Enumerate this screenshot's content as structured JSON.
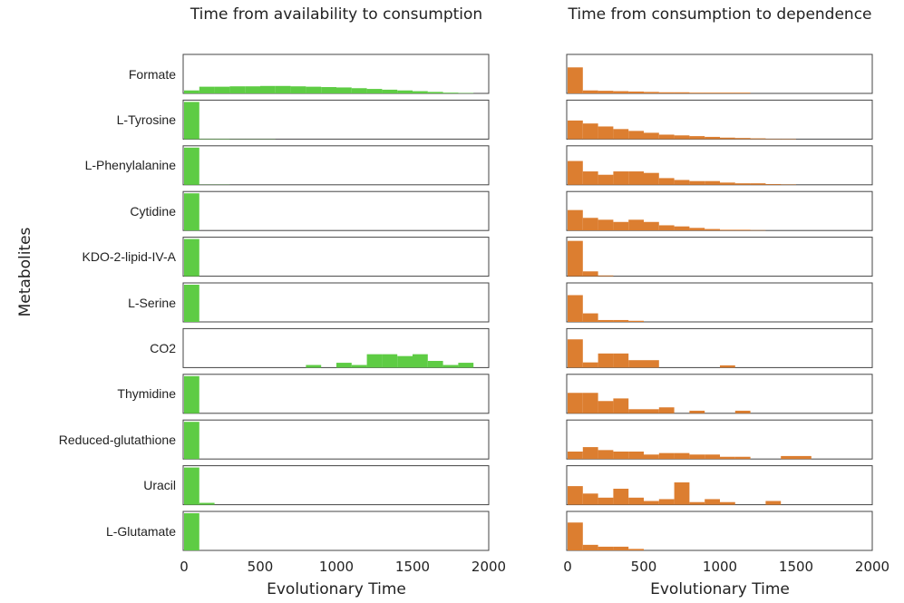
{
  "column_titles": [
    "Time from availability to consumption",
    "Time from consumption to dependence"
  ],
  "ylabel": "Metabolites",
  "xlabel": "Evolutionary Time",
  "x_ticks": [
    "0",
    "500",
    "1000",
    "1500",
    "2000"
  ],
  "colors": {
    "left": "#5ecc44",
    "right": "#dc7e30"
  },
  "chart_data": [
    {
      "type": "bar",
      "title": "Time from availability to consumption",
      "xlabel": "Evolutionary Time",
      "ylabel": "Metabolites",
      "xlim": [
        0,
        2000
      ],
      "bin_width": 100,
      "bin_edges_start": [
        0,
        100,
        200,
        300,
        400,
        500,
        600,
        700,
        800,
        900,
        1000,
        1100,
        1200,
        1300,
        1400,
        1500,
        1600,
        1700,
        1800,
        1900
      ],
      "series": [
        {
          "name": "Formate",
          "values": [
            0.08,
            0.18,
            0.18,
            0.19,
            0.19,
            0.2,
            0.2,
            0.19,
            0.18,
            0.17,
            0.16,
            0.14,
            0.12,
            0.1,
            0.08,
            0.06,
            0.04,
            0.02,
            0.01,
            0
          ]
        },
        {
          "name": "L-Tyrosine",
          "values": [
            1,
            0.01,
            0.01,
            0.005,
            0.005,
            0.005,
            0,
            0,
            0,
            0,
            0,
            0,
            0,
            0,
            0,
            0,
            0,
            0,
            0,
            0
          ]
        },
        {
          "name": "L-Phenylalanine",
          "values": [
            1,
            0.005,
            0.005,
            0,
            0,
            0,
            0,
            0,
            0,
            0,
            0,
            0,
            0,
            0,
            0,
            0,
            0,
            0,
            0,
            0
          ]
        },
        {
          "name": "Cytidine",
          "values": [
            1,
            0,
            0,
            0,
            0,
            0,
            0,
            0,
            0,
            0,
            0,
            0,
            0,
            0,
            0,
            0,
            0,
            0,
            0,
            0
          ]
        },
        {
          "name": "KDO-2-lipid-IV-A",
          "values": [
            1,
            0,
            0,
            0,
            0,
            0,
            0,
            0,
            0,
            0,
            0,
            0,
            0,
            0,
            0,
            0,
            0,
            0,
            0,
            0
          ]
        },
        {
          "name": "L-Serine",
          "values": [
            1,
            0,
            0,
            0,
            0,
            0,
            0,
            0,
            0,
            0,
            0,
            0,
            0,
            0,
            0,
            0,
            0,
            0,
            0,
            0
          ]
        },
        {
          "name": "CO2",
          "values": [
            0,
            0,
            0,
            0,
            0,
            0,
            0,
            0,
            0.07,
            0,
            0.13,
            0.07,
            0.36,
            0.36,
            0.31,
            0.36,
            0.18,
            0.07,
            0.13,
            0
          ]
        },
        {
          "name": "Thymidine",
          "values": [
            1,
            0,
            0,
            0,
            0,
            0,
            0,
            0,
            0,
            0,
            0,
            0,
            0,
            0,
            0,
            0,
            0,
            0,
            0,
            0
          ]
        },
        {
          "name": "Reduced-glutathione",
          "values": [
            1,
            0,
            0,
            0,
            0,
            0,
            0,
            0,
            0,
            0,
            0,
            0,
            0,
            0,
            0,
            0,
            0,
            0,
            0,
            0
          ]
        },
        {
          "name": "Uracil",
          "values": [
            1,
            0.05,
            0,
            0,
            0,
            0,
            0,
            0,
            0,
            0,
            0,
            0,
            0,
            0,
            0,
            0,
            0,
            0,
            0,
            0
          ]
        },
        {
          "name": "L-Glutamate",
          "values": [
            1,
            0,
            0,
            0,
            0,
            0,
            0,
            0,
            0,
            0,
            0,
            0,
            0,
            0,
            0,
            0,
            0,
            0,
            0,
            0
          ]
        }
      ]
    },
    {
      "type": "bar",
      "title": "Time from consumption to dependence",
      "xlabel": "Evolutionary Time",
      "xlim": [
        0,
        2000
      ],
      "bin_width": 100,
      "bin_edges_start": [
        0,
        100,
        200,
        300,
        400,
        500,
        600,
        700,
        800,
        900,
        1000,
        1100,
        1200,
        1300,
        1400,
        1500,
        1600,
        1700,
        1800,
        1900
      ],
      "series": [
        {
          "name": "Formate",
          "values": [
            0.7,
            0.08,
            0.07,
            0.06,
            0.05,
            0.04,
            0.03,
            0.03,
            0.02,
            0.02,
            0.02,
            0.02,
            0,
            0,
            0,
            0,
            0,
            0,
            0,
            0
          ]
        },
        {
          "name": "L-Tyrosine",
          "values": [
            0.5,
            0.42,
            0.34,
            0.27,
            0.22,
            0.17,
            0.12,
            0.1,
            0.08,
            0.06,
            0.04,
            0.03,
            0.02,
            0.01,
            0.01,
            0,
            0,
            0,
            0,
            0
          ]
        },
        {
          "name": "L-Phenylalanine",
          "values": [
            0.64,
            0.36,
            0.27,
            0.36,
            0.36,
            0.32,
            0.18,
            0.13,
            0.1,
            0.1,
            0.06,
            0.04,
            0.04,
            0.02,
            0.01,
            0,
            0,
            0,
            0,
            0
          ]
        },
        {
          "name": "Cytidine",
          "values": [
            0.55,
            0.34,
            0.29,
            0.23,
            0.29,
            0.23,
            0.14,
            0.11,
            0.07,
            0.04,
            0.02,
            0.02,
            0.01,
            0,
            0,
            0,
            0,
            0,
            0,
            0
          ]
        },
        {
          "name": "KDO-2-lipid-IV-A",
          "values": [
            0.95,
            0.13,
            0.02,
            0,
            0,
            0,
            0,
            0,
            0,
            0,
            0,
            0,
            0,
            0,
            0,
            0,
            0,
            0,
            0,
            0
          ]
        },
        {
          "name": "L-Serine",
          "values": [
            0.72,
            0.23,
            0.05,
            0.05,
            0.03,
            0,
            0,
            0,
            0,
            0,
            0,
            0,
            0,
            0,
            0,
            0,
            0,
            0,
            0,
            0
          ]
        },
        {
          "name": "CO2",
          "values": [
            0.76,
            0.14,
            0.38,
            0.38,
            0.2,
            0.2,
            0,
            0,
            0,
            0,
            0.06,
            0,
            0,
            0,
            0,
            0,
            0,
            0,
            0,
            0
          ]
        },
        {
          "name": "Thymidine",
          "values": [
            0.55,
            0.55,
            0.33,
            0.4,
            0.11,
            0.11,
            0.16,
            0,
            0.07,
            0,
            0,
            0.07,
            0,
            0,
            0,
            0,
            0,
            0,
            0,
            0
          ]
        },
        {
          "name": "Reduced-glutathione",
          "values": [
            0.2,
            0.32,
            0.24,
            0.2,
            0.2,
            0.12,
            0.16,
            0.16,
            0.12,
            0.12,
            0.06,
            0.06,
            0,
            0,
            0.08,
            0.08,
            0,
            0,
            0,
            0
          ]
        },
        {
          "name": "Uracil",
          "values": [
            0.5,
            0.3,
            0.19,
            0.43,
            0.19,
            0.1,
            0.15,
            0.6,
            0.07,
            0.15,
            0.07,
            0,
            0,
            0.1,
            0,
            0,
            0,
            0,
            0,
            0
          ]
        },
        {
          "name": "L-Glutamate",
          "values": [
            0.75,
            0.15,
            0.1,
            0.1,
            0.04,
            0,
            0,
            0,
            0,
            0,
            0,
            0,
            0,
            0,
            0,
            0,
            0,
            0,
            0,
            0
          ]
        }
      ]
    }
  ]
}
